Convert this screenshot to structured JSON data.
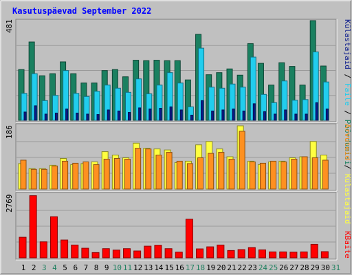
{
  "chart_data": {
    "type": "bar",
    "title": "Kasutuspäevad September 2022",
    "categories": [
      "1",
      "2",
      "3",
      "4",
      "5",
      "6",
      "7",
      "8",
      "9",
      "10",
      "11",
      "12",
      "13",
      "14",
      "15",
      "16",
      "17",
      "18",
      "19",
      "20",
      "21",
      "22",
      "23",
      "24",
      "25",
      "26",
      "27",
      "28",
      "29",
      "30",
      "31"
    ],
    "weekend_days": [
      "3",
      "4",
      "10",
      "11",
      "17",
      "18",
      "24",
      "25",
      "31"
    ],
    "panels": [
      {
        "name": "top",
        "ymax_label": "481",
        "ymax": 481,
        "series": [
          {
            "name": "Pöördumisi",
            "color": "#1a8060",
            "values": [
              245,
              378,
              215,
              225,
              282,
              225,
              180,
              180,
              240,
              245,
              210,
              290,
              288,
              290,
              288,
              288,
              195,
              415,
              220,
              230,
              248,
              218,
              370,
              275,
              170,
              278,
              260,
              170,
              481,
              262,
              0
            ]
          },
          {
            "name": "Faile",
            "color": "#21cdee",
            "values": [
              130,
              225,
              95,
              120,
              240,
              130,
              115,
              140,
              170,
              155,
              135,
              200,
              128,
              170,
              230,
              180,
              65,
              348,
              160,
              155,
              175,
              160,
              305,
              125,
              85,
              190,
              97,
              100,
              330,
              185,
              0
            ]
          },
          {
            "name": "Külastajaid",
            "color": "#0a1a8c",
            "values": [
              40,
              70,
              30,
              35,
              55,
              35,
              30,
              28,
              50,
              45,
              38,
              60,
              55,
              58,
              65,
              50,
              25,
              95,
              45,
              50,
              55,
              45,
              80,
              42,
              30,
              50,
              30,
              30,
              85,
              55,
              0
            ]
          }
        ]
      },
      {
        "name": "middle",
        "ymax_label": "186",
        "ymax": 186,
        "series": [
          {
            "name": "Külastajaid",
            "color": "#ffff40",
            "values": [
              75,
              60,
              60,
              70,
              90,
              72,
              75,
              80,
              110,
              100,
              92,
              135,
              120,
              118,
              115,
              78,
              82,
              130,
              140,
              118,
              95,
              186,
              82,
              72,
              80,
              82,
              92,
              95,
              140,
              100,
              0
            ]
          },
          {
            "name": "Arvuteid",
            "color": "#ff9020",
            "values": [
              85,
              58,
              58,
              68,
              82,
              76,
              80,
              72,
              88,
              90,
              88,
              120,
              118,
              100,
              108,
              82,
              75,
              92,
              105,
              108,
              88,
              170,
              80,
              76,
              82,
              80,
              88,
              95,
              92,
              85,
              0
            ]
          }
        ]
      },
      {
        "name": "bottom",
        "ymax_label": "2769",
        "ymax": 2769,
        "series": [
          {
            "name": "KBaite",
            "color": "#ff0000",
            "values": [
              900,
              2720,
              700,
              1800,
              780,
              560,
              420,
              230,
              400,
              340,
              400,
              300,
              510,
              550,
              400,
              250,
              1690,
              390,
              480,
              560,
              320,
              360,
              450,
              350,
              260,
              260,
              250,
              260,
              590,
              270,
              0
            ]
          }
        ]
      }
    ],
    "right_labels_top": [
      "Külastajaid",
      "/",
      "Faile",
      "/",
      "Pöördumisi"
    ],
    "right_labels_middle": [
      "Arvuteid",
      "/",
      "Külastajaid"
    ],
    "right_labels_bottom": [
      "KBaite"
    ],
    "colors": {
      "background": "#c0c0c0",
      "title": "#0000ff",
      "weekday_label": "#000000",
      "weekend_label": "#208060"
    }
  }
}
